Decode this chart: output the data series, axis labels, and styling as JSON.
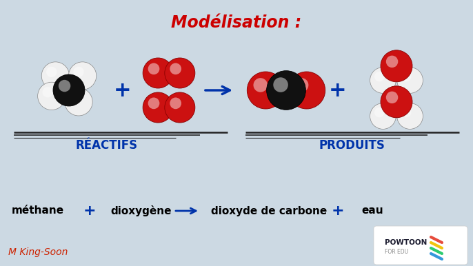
{
  "title": "Modélisation :",
  "title_color": "#cc0000",
  "title_fontsize": 17,
  "bg_color": "#ccd9e3",
  "reactifs_label": "RÉACTIFS",
  "produits_label": "PRODUITS",
  "label_color": "#0033aa",
  "label_fontsize": 12,
  "watermark": "M King-Soon",
  "watermark_color": "#cc2200",
  "watermark_fontsize": 10,
  "red_color": "#cc1111",
  "black_color": "#111111",
  "white_color": "#f0f0f0",
  "sphere_edge": "#555555",
  "sphere_lw": 0.6
}
